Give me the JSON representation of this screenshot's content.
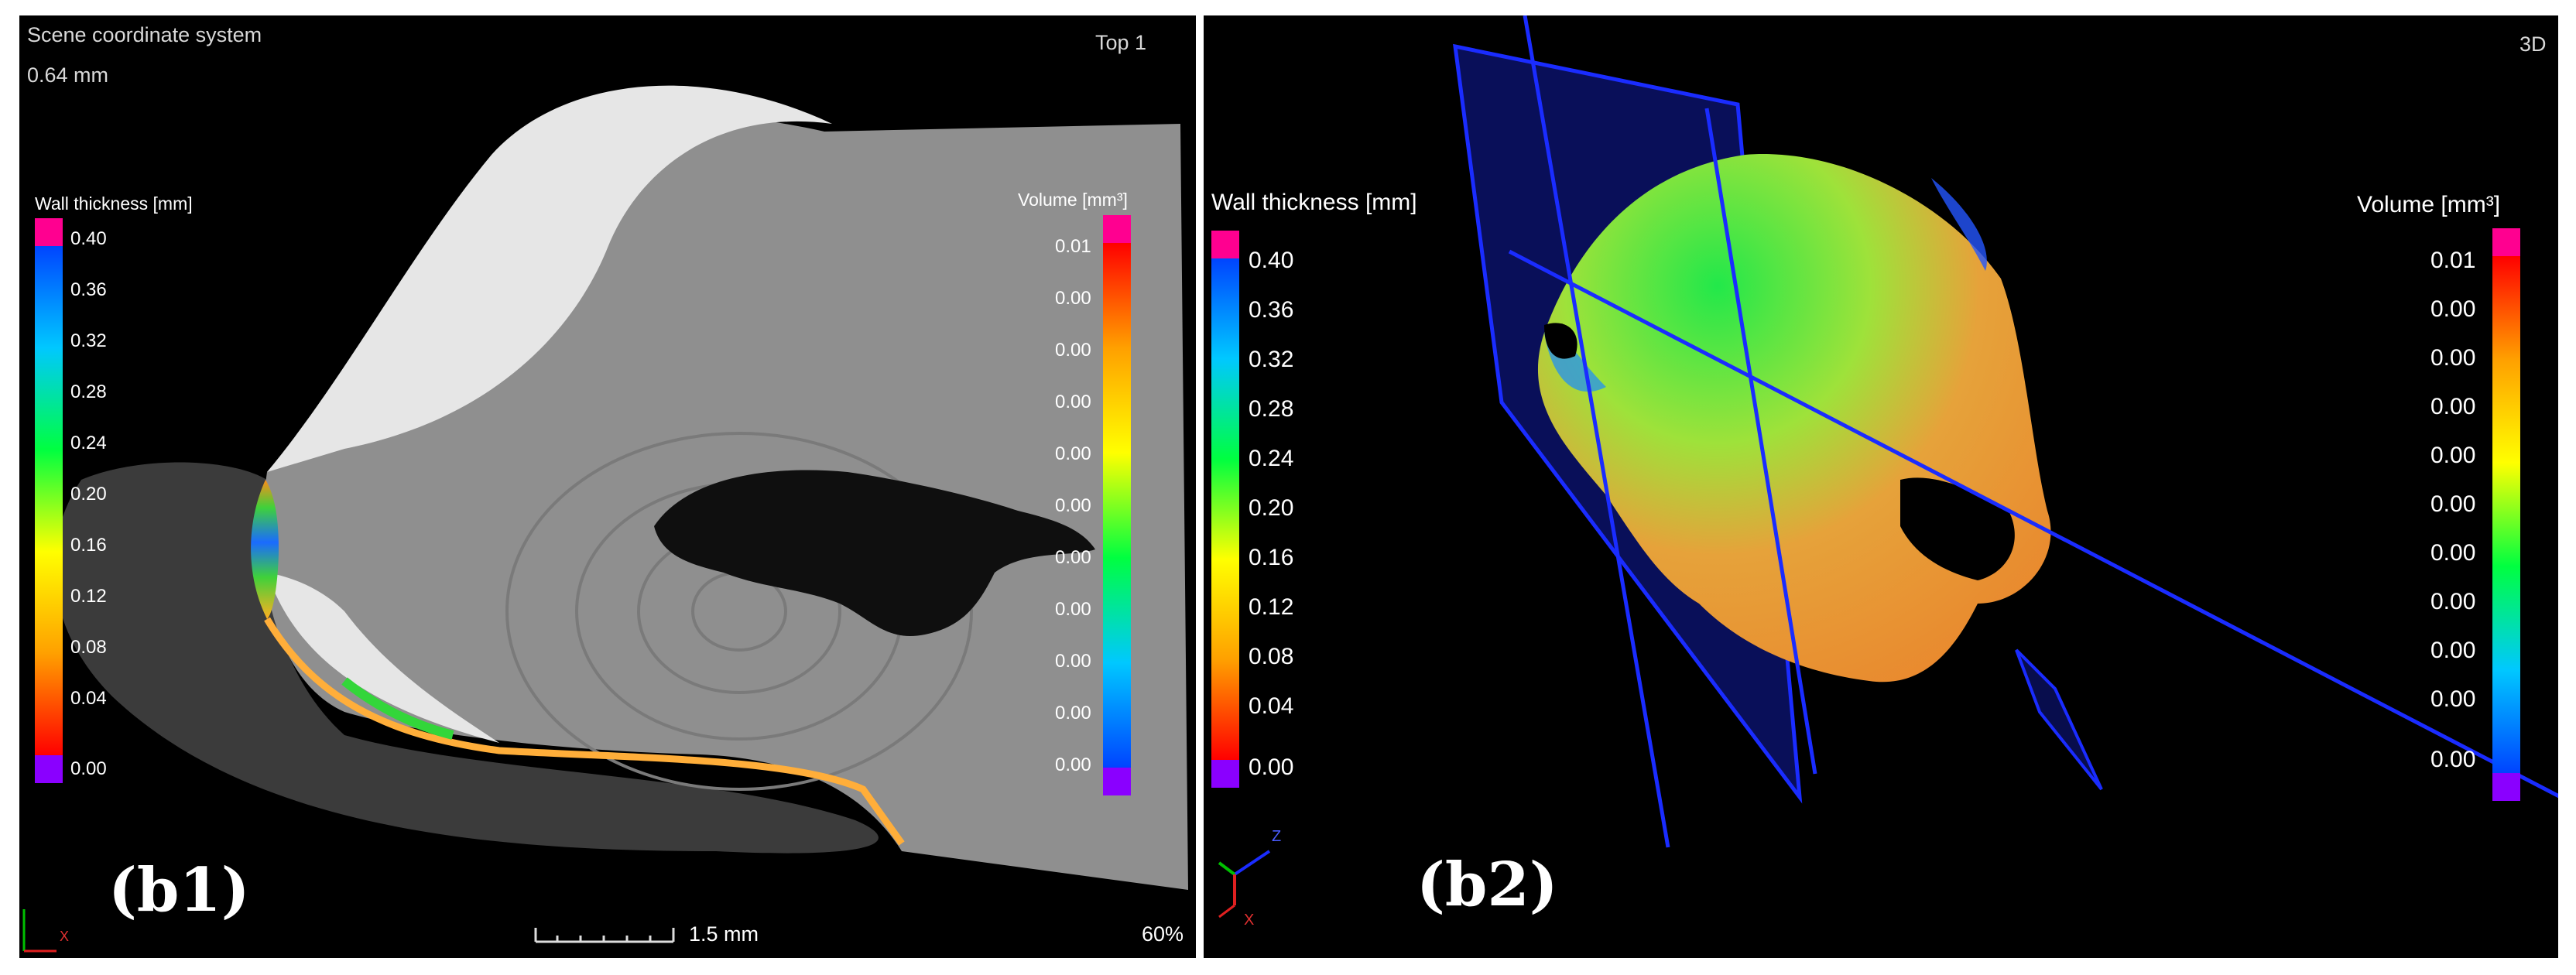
{
  "colors": {
    "background": "#000000",
    "gradient": [
      "#0044ff",
      "#00c8ff",
      "#00ff40",
      "#ffff00",
      "#ffa000",
      "#ff0000"
    ],
    "top_cap": "#ff0090",
    "bottom_cap": "#8a00ff",
    "plane": "#1a2cff"
  },
  "b1": {
    "header_left": "Scene coordinate system",
    "header_sub": "0.64 mm",
    "view_label": "Top 1",
    "wall_title": "Wall thickness [mm]",
    "wall_ticks": [
      "0.40",
      "0.36",
      "0.32",
      "0.28",
      "0.24",
      "0.20",
      "0.16",
      "0.12",
      "0.08",
      "0.04",
      "0.00"
    ],
    "volume_title": "Volume [mm³]",
    "volume_ticks": [
      "0.01",
      "0.00",
      "0.00",
      "0.00",
      "0.00",
      "0.00",
      "0.00",
      "0.00",
      "0.00",
      "0.00",
      "0.00"
    ],
    "scale_label": "1.5 mm",
    "zoom": "60%",
    "panel_label": "(b1)",
    "axis_x": "X"
  },
  "b2": {
    "view_label": "3D",
    "wall_title": "Wall thickness [mm]",
    "wall_ticks": [
      "0.40",
      "0.36",
      "0.32",
      "0.28",
      "0.24",
      "0.20",
      "0.16",
      "0.12",
      "0.08",
      "0.04",
      "0.00"
    ],
    "volume_title": "Volume [mm³]",
    "volume_ticks": [
      "0.01",
      "0.00",
      "0.00",
      "0.00",
      "0.00",
      "0.00",
      "0.00",
      "0.00",
      "0.00",
      "0.00",
      "0.00"
    ],
    "panel_label": "(b2)",
    "axis_x": "X",
    "axis_z": "Z"
  }
}
